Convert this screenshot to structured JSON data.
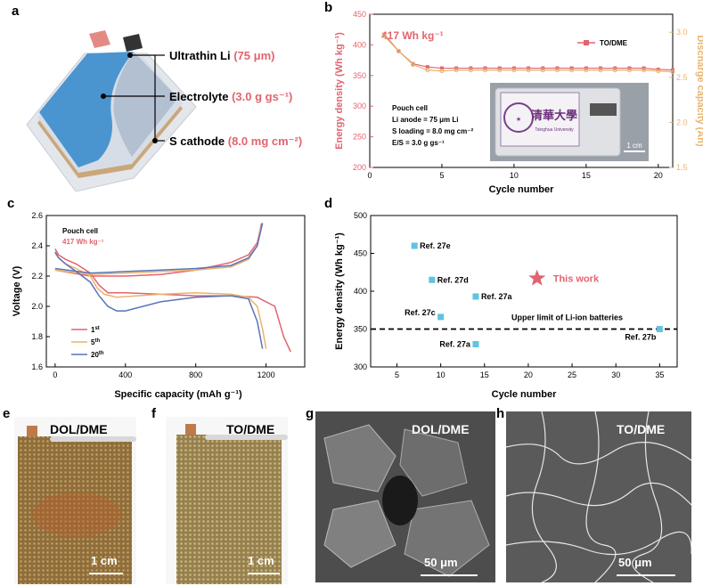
{
  "panels": {
    "a": "a",
    "b": "b",
    "c": "c",
    "d": "d",
    "e": "e",
    "f": "f",
    "g": "g",
    "h": "h"
  },
  "schematic": {
    "items": [
      {
        "label": "Ultrathin Li ",
        "value": "(75 μm)"
      },
      {
        "label": "Electrolyte ",
        "value": "(3.0 g gs⁻¹)"
      },
      {
        "label": "S cathode ",
        "value": "(8.0 mg cm⁻²)"
      }
    ]
  },
  "colors": {
    "accent": "#e2646e",
    "secondary": "#e8b46f",
    "blue": "#5a74b8",
    "cyan": "#5fc4df"
  },
  "chart_data": [
    {
      "type": "line",
      "panel": "b",
      "title": "",
      "xlabel": "Cycle number",
      "ylabel": "Energy density (Wh kg⁻¹)",
      "y2label": "Discharge capacity (Ah)",
      "xlim": [
        0,
        21
      ],
      "ylim": [
        200,
        450
      ],
      "y2lim": [
        1.5,
        3.2
      ],
      "xticks": [
        "0",
        "5",
        "10",
        "15",
        "20"
      ],
      "yticks": [
        "200",
        "250",
        "300",
        "350",
        "400",
        "450"
      ],
      "y2ticks": [
        "1.5",
        "2.0",
        "2.5",
        "3.0"
      ],
      "annotation": "417 Wh kg⁻¹",
      "legend": "TO/DME",
      "legend_position": "top-right",
      "inset_text": [
        "Pouch cell",
        "Li anode = 75 μm Li",
        "S loading = 8.0 mg cm⁻²",
        "E/S = 3.0 g gs⁻¹"
      ],
      "photo_text": {
        "scale": "1 cm",
        "logo": "清華大學",
        "sub": "Tsinghua University"
      },
      "series": [
        {
          "name": "Energy density",
          "axis": "left",
          "x": [
            1,
            2,
            3,
            4,
            5,
            6,
            7,
            8,
            9,
            10,
            11,
            12,
            13,
            14,
            15,
            16,
            17,
            18,
            19,
            20,
            21
          ],
          "values": [
            417,
            390,
            369,
            364,
            362,
            362,
            362,
            362,
            362,
            362,
            362,
            362,
            362,
            362,
            362,
            362,
            362,
            362,
            362,
            360,
            359
          ]
        },
        {
          "name": "Discharge capacity",
          "axis": "right",
          "x": [
            1,
            2,
            3,
            4,
            5,
            6,
            7,
            8,
            9,
            10,
            11,
            12,
            13,
            14,
            15,
            16,
            17,
            18,
            19,
            20,
            21
          ],
          "values": [
            2.96,
            2.79,
            2.64,
            2.58,
            2.57,
            2.58,
            2.58,
            2.58,
            2.58,
            2.58,
            2.58,
            2.58,
            2.58,
            2.58,
            2.58,
            2.58,
            2.58,
            2.58,
            2.58,
            2.57,
            2.56
          ]
        }
      ]
    },
    {
      "type": "line",
      "panel": "c",
      "title": "",
      "xlabel": "Specific capacity (mAh g⁻¹)",
      "ylabel": "Voltage (V)",
      "xlim": [
        -50,
        1420
      ],
      "ylim": [
        1.6,
        2.6
      ],
      "xticks": [
        "0",
        "400",
        "800",
        "1200"
      ],
      "yticks": [
        "1.6",
        "1.8",
        "2.0",
        "2.2",
        "2.4",
        "2.6"
      ],
      "text": [
        "Pouch cell",
        "417 Wh kg⁻¹"
      ],
      "legend_position": "bottom-left",
      "series": [
        {
          "name": "1st",
          "legend": "1",
          "sup": "st",
          "color": "#e2646e",
          "discharge": {
            "x": [
              0,
              20,
              60,
              120,
              200,
              250,
              300,
              400,
              600,
              800,
              1000,
              1150,
              1250,
              1300,
              1340
            ],
            "y": [
              2.38,
              2.34,
              2.31,
              2.28,
              2.22,
              2.14,
              2.09,
              2.09,
              2.08,
              2.07,
              2.07,
              2.06,
              2.0,
              1.8,
              1.7
            ]
          },
          "charge": {
            "x": [
              0,
              200,
              400,
              600,
              800,
              1000,
              1100,
              1150,
              1175
            ],
            "y": [
              2.24,
              2.2,
              2.2,
              2.21,
              2.24,
              2.29,
              2.34,
              2.42,
              2.55
            ]
          }
        },
        {
          "name": "5th",
          "legend": "5",
          "sup": "th",
          "color": "#e8b46f",
          "discharge": {
            "x": [
              0,
              20,
              60,
              120,
              200,
              240,
              280,
              350,
              600,
              800,
              1000,
              1100,
              1150,
              1180,
              1200
            ],
            "y": [
              2.35,
              2.32,
              2.28,
              2.25,
              2.2,
              2.12,
              2.08,
              2.06,
              2.08,
              2.09,
              2.08,
              2.06,
              2.0,
              1.85,
              1.72
            ]
          },
          "charge": {
            "x": [
              0,
              200,
              400,
              600,
              800,
              1000,
              1100,
              1150,
              1170
            ],
            "y": [
              2.24,
              2.21,
              2.22,
              2.23,
              2.24,
              2.26,
              2.31,
              2.4,
              2.52
            ]
          }
        },
        {
          "name": "20th",
          "legend": "20",
          "sup": "th",
          "color": "#5a74b8",
          "discharge": {
            "x": [
              0,
              20,
              60,
              120,
              200,
              250,
              300,
              350,
              400,
              600,
              800,
              1000,
              1100,
              1150,
              1180
            ],
            "y": [
              2.36,
              2.32,
              2.28,
              2.23,
              2.16,
              2.07,
              2.0,
              1.97,
              1.97,
              2.03,
              2.06,
              2.07,
              2.05,
              1.9,
              1.72
            ]
          },
          "charge": {
            "x": [
              0,
              200,
              400,
              600,
              800,
              1000,
              1100,
              1150,
              1180
            ],
            "y": [
              2.25,
              2.22,
              2.23,
              2.24,
              2.25,
              2.27,
              2.32,
              2.4,
              2.55
            ]
          }
        }
      ]
    },
    {
      "type": "scatter",
      "panel": "d",
      "title": "",
      "xlabel": "Cycle number",
      "ylabel": "Energy density (Wh kg⁻¹)",
      "xlim": [
        2,
        37
      ],
      "ylim": [
        300,
        500
      ],
      "xticks": [
        "5",
        "10",
        "15",
        "20",
        "25",
        "30",
        "35"
      ],
      "yticks": [
        "300",
        "350",
        "400",
        "450",
        "500"
      ],
      "limit_line": {
        "value": 350,
        "label": "Upper limit of Li-ion batteries"
      },
      "points": [
        {
          "label": "Ref. 27e",
          "x": 7,
          "y": 460
        },
        {
          "label": "Ref. 27d",
          "x": 9,
          "y": 415
        },
        {
          "label": "Ref. 27a",
          "x": 14,
          "y": 393
        },
        {
          "label": "Ref. 27c",
          "x": 10,
          "y": 366
        },
        {
          "label": "Ref. 27a",
          "x": 14,
          "y": 330
        },
        {
          "label": "Ref. 27b",
          "x": 35,
          "y": 350
        }
      ],
      "highlight": {
        "label": "This work",
        "x": 21,
        "y": 417
      }
    }
  ],
  "photos": {
    "e": {
      "label": "DOL/DME",
      "scale": "1 cm"
    },
    "f": {
      "label": "TO/DME",
      "scale": "1 cm"
    },
    "g": {
      "label": "DOL/DME",
      "scale": "50 μm"
    },
    "h": {
      "label": "TO/DME",
      "scale": "50 μm"
    }
  }
}
